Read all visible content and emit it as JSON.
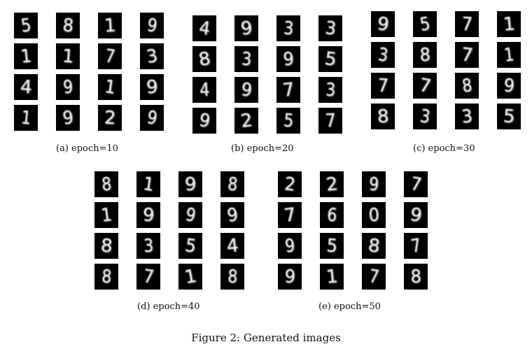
{
  "figure_caption": "Figure 2: Generated images",
  "panels": [
    {
      "caption": "(a) epoch=10",
      "digits": [
        [
          "5",
          "8",
          "1",
          "9"
        ],
        [
          "1",
          "1",
          "7",
          "3"
        ],
        [
          "4",
          "9",
          "1",
          "9"
        ],
        [
          "1",
          "9",
          "2",
          "9"
        ]
      ]
    },
    {
      "caption": "(b) epoch=20",
      "digits": [
        [
          "4",
          "9",
          "3",
          "3"
        ],
        [
          "8",
          "3",
          "9",
          "5"
        ],
        [
          "4",
          "9",
          "7",
          "3"
        ],
        [
          "9",
          "2",
          "5",
          "7"
        ]
      ]
    },
    {
      "caption": "(c) epoch=30",
      "digits": [
        [
          "9",
          "5",
          "7",
          "1"
        ],
        [
          "3",
          "8",
          "7",
          "1"
        ],
        [
          "7",
          "7",
          "8",
          "9"
        ],
        [
          "8",
          "3",
          "3",
          "5"
        ]
      ]
    },
    {
      "caption": "(d) epoch=40",
      "digits": [
        [
          "8",
          "1",
          "9",
          "8"
        ],
        [
          "1",
          "9",
          "9",
          "9"
        ],
        [
          "8",
          "3",
          "5",
          "4"
        ],
        [
          "8",
          "7",
          "1",
          "8"
        ]
      ]
    },
    {
      "caption": "(e) epoch=50",
      "digits": [
        [
          "2",
          "2",
          "9",
          "7"
        ],
        [
          "7",
          "6",
          "0",
          "9"
        ],
        [
          "9",
          "5",
          "8",
          "7"
        ],
        [
          "9",
          "1",
          "7",
          "8"
        ]
      ]
    }
  ]
}
